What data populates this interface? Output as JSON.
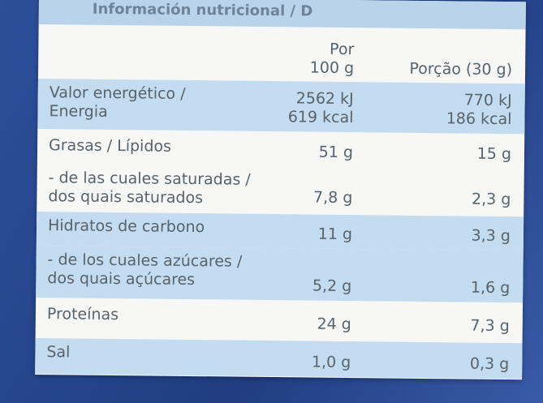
{
  "header": {
    "title": "Información nutricional / D"
  },
  "columns": {
    "per100": [
      "Por",
      "100 g"
    ],
    "portion": [
      "Porção (30 g)"
    ]
  },
  "table": {
    "rows": [
      {
        "label": [
          "Valor energético /",
          "Energia"
        ],
        "per100": [
          "2562 kJ",
          "619 kcal"
        ],
        "portion": [
          "770 kJ",
          "186 kcal"
        ]
      },
      {
        "label": [
          "Grasas / Lípidos"
        ],
        "per100": [
          "51 g"
        ],
        "portion": [
          "15 g"
        ]
      },
      {
        "label": [
          "- de las cuales saturadas /",
          "dos quais saturados"
        ],
        "per100": [
          "7,8 g"
        ],
        "portion": [
          "2,3 g"
        ]
      },
      {
        "label": [
          "Hidratos de carbono"
        ],
        "per100": [
          "11 g"
        ],
        "portion": [
          "3,3 g"
        ]
      },
      {
        "label": [
          "- de los cuales azúcares /",
          "dos quais açúcares"
        ],
        "per100": [
          "5,2 g"
        ],
        "portion": [
          "1,6 g"
        ]
      },
      {
        "label": [
          "Proteínas"
        ],
        "per100": [
          "24 g"
        ],
        "portion": [
          "7,3 g"
        ]
      },
      {
        "label": [
          "Sal"
        ],
        "per100": [
          "1,0 g"
        ],
        "portion": [
          "0,3 g"
        ]
      }
    ]
  }
}
